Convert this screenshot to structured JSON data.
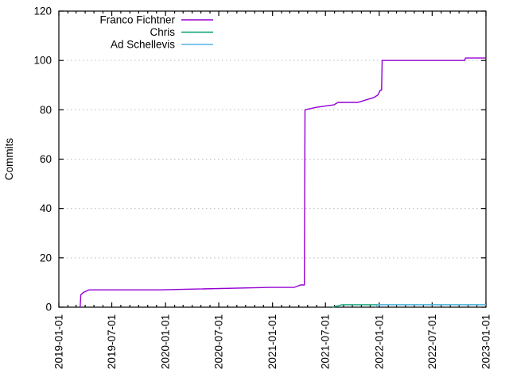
{
  "chart_data": {
    "type": "line",
    "title": "",
    "xlabel": "",
    "ylabel": "Commits",
    "ylim": [
      0,
      120
    ],
    "yticks": [
      0,
      20,
      40,
      60,
      80,
      100,
      120
    ],
    "xlim": [
      "2019-01-01",
      "2023-01-01"
    ],
    "xticks": [
      "2019-01-01",
      "2019-07-01",
      "2020-01-01",
      "2020-07-01",
      "2021-01-01",
      "2021-07-01",
      "2022-01-01",
      "2022-07-01",
      "2023-01-01"
    ],
    "minor_xtick_interval": "month",
    "grid": {
      "horizontal": true,
      "style": "dotted",
      "color": "#b9b9b9"
    },
    "axis_color": "#000000",
    "legend": {
      "position": "top-inside"
    },
    "series": [
      {
        "name": "Franco Fichtner",
        "color": "#9400d3",
        "points": [
          [
            "2019-03-15",
            0
          ],
          [
            "2019-03-17",
            5
          ],
          [
            "2019-03-26",
            6
          ],
          [
            "2019-04-14",
            7
          ],
          [
            "2019-12-10",
            7
          ],
          [
            "2020-12-25",
            8
          ],
          [
            "2021-03-16",
            8
          ],
          [
            "2021-04-07",
            9
          ],
          [
            "2021-04-20",
            9
          ],
          [
            "2021-04-22",
            80
          ],
          [
            "2021-05-31",
            81
          ],
          [
            "2021-07-30",
            82
          ],
          [
            "2021-08-13",
            83
          ],
          [
            "2021-10-20",
            83
          ],
          [
            "2021-12-14",
            85
          ],
          [
            "2021-12-27",
            86
          ],
          [
            "2022-01-05",
            88
          ],
          [
            "2022-01-09",
            88
          ],
          [
            "2022-01-11",
            100
          ],
          [
            "2022-10-20",
            100
          ],
          [
            "2022-10-23",
            101
          ],
          [
            "2023-01-01",
            101
          ]
        ]
      },
      {
        "name": "Chris",
        "color": "#009e73",
        "points": [
          [
            "2021-07-26",
            0
          ],
          [
            "2021-08-26",
            1
          ],
          [
            "2023-01-01",
            1
          ]
        ]
      },
      {
        "name": "Ad Schellevis",
        "color": "#56b4e9",
        "points": [
          [
            "2021-12-20",
            0
          ],
          [
            "2021-12-26",
            1
          ],
          [
            "2023-01-01",
            1
          ]
        ]
      }
    ]
  }
}
